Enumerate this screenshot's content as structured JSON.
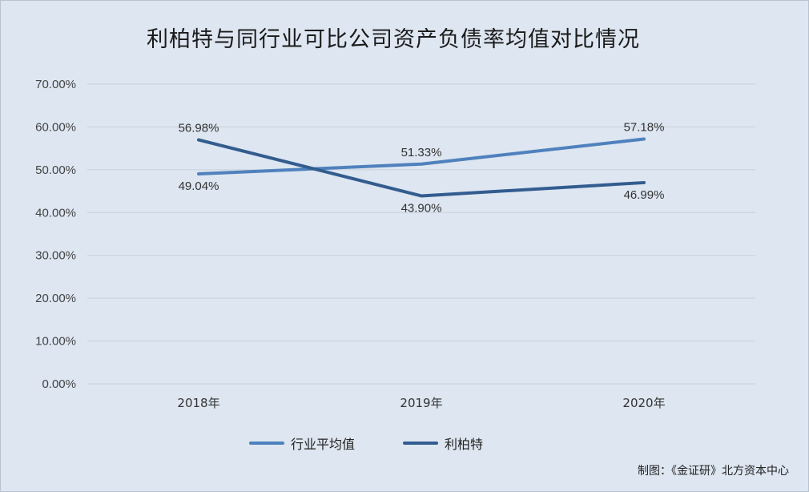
{
  "chart_data": {
    "type": "line",
    "title": "利柏特与同行业可比公司资产负债率均值对比情况",
    "categories": [
      "2018年",
      "2019年",
      "2020年"
    ],
    "ylim": [
      0,
      70
    ],
    "yticks": [
      "0.00%",
      "10.00%",
      "20.00%",
      "30.00%",
      "40.00%",
      "50.00%",
      "60.00%",
      "70.00%"
    ],
    "grid": true,
    "legend_position": "bottom",
    "series": [
      {
        "name": "行业平均值",
        "color": "#4f81bd",
        "values": [
          49.04,
          51.33,
          57.18
        ],
        "labels": [
          "49.04%",
          "51.33%",
          "57.18%"
        ]
      },
      {
        "name": "利柏特",
        "color": "#335c8f",
        "values": [
          56.98,
          43.9,
          46.99
        ],
        "labels": [
          "56.98%",
          "43.90%",
          "46.99%"
        ]
      }
    ]
  },
  "source": "制图：《金证研》北方资本中心"
}
